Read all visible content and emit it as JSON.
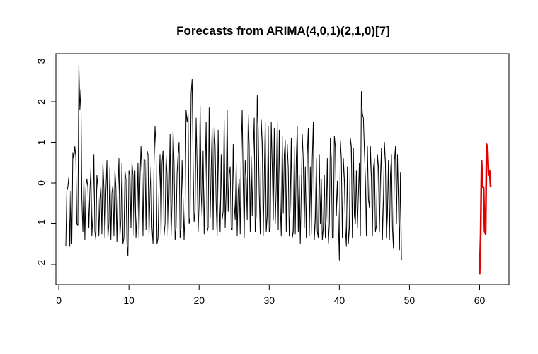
{
  "chart_data": {
    "type": "line",
    "title": "Forecasts from ARIMA(4,0,1)(2,1,0)[7]",
    "xlabel": "",
    "ylabel": "",
    "xlim": [
      0,
      64
    ],
    "ylim": [
      -2.5,
      3.2
    ],
    "xticks": [
      0,
      10,
      20,
      30,
      40,
      50,
      60
    ],
    "yticks": [
      -2,
      -1,
      0,
      1,
      2,
      3
    ],
    "grid": false,
    "series": [
      {
        "role": "observed",
        "color": "#000000",
        "x_start": 1,
        "x_step": 0.142857,
        "values": [
          -1.55,
          -0.2,
          -0.1,
          0.15,
          -1.55,
          -0.2,
          -1.5,
          0.75,
          0.6,
          0.9,
          0.65,
          -1.0,
          -1.05,
          2.9,
          1.8,
          2.3,
          -0.4,
          -1.2,
          0.1,
          -1.4,
          -0.1,
          0.1,
          -0.1,
          -1.1,
          -0.2,
          0.35,
          -1.3,
          -0.8,
          0.7,
          -1.2,
          -1.4,
          0.2,
          -0.1,
          -1.3,
          -0.4,
          -0.05,
          -1.25,
          0.5,
          -0.1,
          -1.35,
          -0.2,
          0.55,
          -1.35,
          -1.0,
          0.4,
          -1.4,
          -0.25,
          -0.05,
          -1.3,
          0.3,
          -0.1,
          -1.45,
          -0.2,
          0.6,
          -1.3,
          -0.9,
          0.5,
          -1.5,
          -1.35,
          0.3,
          0.1,
          -1.5,
          -1.8,
          0.3,
          0.2,
          -1.1,
          0.5,
          0.2,
          -1.3,
          0.3,
          -1.35,
          -0.8,
          0.5,
          -1.35,
          0.1,
          0.9,
          0.25,
          -1.3,
          0.6,
          0.55,
          -1.15,
          0.8,
          0.7,
          -1.3,
          -0.3,
          0.4,
          -1.1,
          -1.5,
          0.45,
          1.4,
          0.9,
          -1.5,
          -1.35,
          -0.1,
          0.7,
          -1.3,
          0.5,
          0.8,
          -1.3,
          -1.0,
          0.7,
          0.2,
          -1.3,
          -0.3,
          1.2,
          -1.3,
          -0.5,
          1.3,
          0.5,
          -1.4,
          -1.1,
          0.25,
          0.7,
          1.0,
          -1.35,
          -1.1,
          0.55,
          -0.35,
          -1.4,
          -0.7,
          1.8,
          1.5,
          1.7,
          -1.0,
          -0.85,
          2.2,
          2.55,
          0.5,
          -0.95,
          -0.7,
          1.6,
          0.4,
          -1.2,
          -0.5,
          1.9,
          -0.2,
          -0.85,
          0.8,
          -1.25,
          0.2,
          1.5,
          -1.2,
          -1.1,
          1.85,
          -0.85,
          0.3,
          1.35,
          -1.15,
          1.4,
          0.9,
          -0.5,
          -1.3,
          1.3,
          -0.4,
          -1.2,
          0.7,
          -0.9,
          -0.7,
          1.55,
          -1.1,
          -0.2,
          1.8,
          -0.7,
          0.2,
          0.4,
          -1.1,
          -1.15,
          0.95,
          -0.5,
          -0.9,
          0.5,
          -1.3,
          -0.2,
          0.1,
          -1.25,
          0.8,
          1.8,
          -0.05,
          -1.35,
          0.55,
          0.1,
          -0.9,
          1.7,
          0.9,
          -1.2,
          0.65,
          -0.8,
          0.7,
          1.6,
          -1.2,
          -0.8,
          2.15,
          1.3,
          -0.25,
          -1.25,
          1.55,
          1.0,
          -1.3,
          0.1,
          1.5,
          -1.2,
          -0.8,
          1.4,
          -1.2,
          -1.1,
          1.5,
          0.4,
          -0.9,
          1.35,
          -1.0,
          -0.1,
          1.5,
          -1.15,
          1.3,
          -0.5,
          -1.3,
          1.15,
          -0.75,
          0.7,
          1.05,
          -1.2,
          0.95,
          0.35,
          -1.3,
          -0.5,
          1.1,
          -1.35,
          -1.2,
          0.9,
          -1.25,
          0.6,
          1.4,
          -1.2,
          0.2,
          -1.5,
          -0.2,
          1.2,
          0.55,
          -1.1,
          0.4,
          -1.35,
          0.7,
          1.35,
          -1.3,
          0.4,
          -1.25,
          0.6,
          1.5,
          -1.4,
          -0.9,
          0.6,
          -1.2,
          -1.35,
          0.7,
          -1.0,
          0.1,
          -1.4,
          -1.1,
          0.2,
          -1.35,
          -0.8,
          0.6,
          -1.5,
          -1.0,
          1.1,
          0.6,
          -1.35,
          -1.35,
          1.15,
          0.9,
          -0.8,
          0.05,
          -0.9,
          -1.9,
          1.05,
          0.6,
          -1.35,
          0.6,
          0.1,
          -1.1,
          -1.55,
          0.4,
          -1.5,
          -1.1,
          1.1,
          0.9,
          -1.35,
          0.85,
          -0.8,
          -1.0,
          0.3,
          -1.1,
          -0.3,
          0.5,
          -1.3,
          2.25,
          1.7,
          1.6,
          0.8,
          0.1,
          -1.3,
          0.9,
          -0.4,
          -0.6,
          0.9,
          0.1,
          -1.3,
          0.35,
          0.6,
          -1.2,
          -1.05,
          0.7,
          0.4,
          -1.2,
          0.1,
          0.85,
          -1.4,
          -0.4,
          1.0,
          0.5,
          -1.35,
          -0.8,
          0.55,
          -1.4,
          0.2,
          0.7,
          -1.1,
          -1.6,
          0.55,
          0.9,
          -1.0,
          0.7,
          -0.5,
          -1.65,
          0.25,
          -1.9
        ]
      },
      {
        "role": "forecast",
        "color": "#e00000",
        "x_start": 60,
        "x_step": 0.142857,
        "values": [
          -2.25,
          -1.3,
          0.55,
          -0.1,
          -0.1,
          -1.2,
          -1.25,
          0.95,
          0.85,
          0.2,
          0.3,
          -0.1
        ]
      }
    ]
  }
}
